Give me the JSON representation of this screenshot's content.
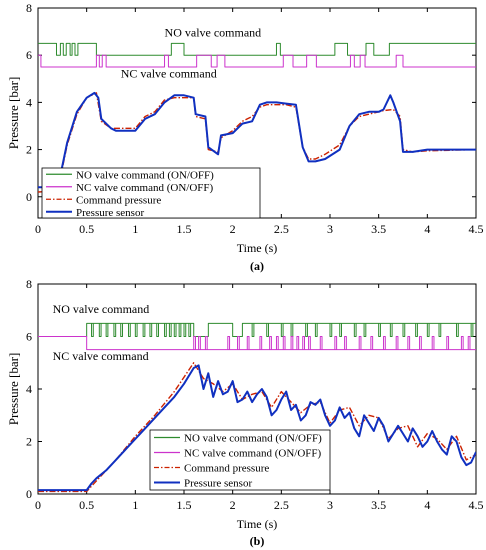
{
  "chart_data": [
    {
      "type": "line",
      "panel_label": "(a)",
      "xlabel": "Time (s)",
      "ylabel": "Pressure [bar]",
      "xlim": [
        0,
        4.5
      ],
      "ylim": [
        -0.9,
        8
      ],
      "xticks": [
        0,
        0.5,
        1,
        1.5,
        2,
        2.5,
        3,
        3.5,
        4,
        4.5
      ],
      "xtick_labels": [
        "0",
        "0.5",
        "1",
        "1.5",
        "2",
        "2.5",
        "3",
        "3.5",
        "4",
        "4.5"
      ],
      "yticks": [
        0,
        2,
        4,
        6,
        8
      ],
      "ytick_labels": [
        "0",
        "2",
        "4",
        "6",
        "8"
      ],
      "grid": false,
      "legend_position": "bottom-left",
      "annotations": [
        {
          "text": "NO valve command",
          "x": 1.3,
          "y": 6.8
        },
        {
          "text": "NC valve command",
          "x": 0.85,
          "y": 5.05
        }
      ],
      "series": [
        {
          "name": "NO valve command (ON/OFF)",
          "color": "#2e8b2e",
          "style": "solid",
          "kind": "digital",
          "low": 6.0,
          "high": 6.5,
          "transitions": [
            [
              0,
              0.19,
              1
            ],
            [
              0.19,
              0.23,
              0
            ],
            [
              0.23,
              0.26,
              1
            ],
            [
              0.26,
              0.29,
              0
            ],
            [
              0.29,
              0.33,
              1
            ],
            [
              0.33,
              0.35,
              0
            ],
            [
              0.35,
              0.38,
              1
            ],
            [
              0.38,
              0.41,
              0
            ],
            [
              0.41,
              0.6,
              1
            ],
            [
              0.6,
              1.37,
              0
            ],
            [
              1.37,
              1.5,
              1
            ],
            [
              1.5,
              2.45,
              0
            ],
            [
              2.45,
              2.49,
              1
            ],
            [
              2.49,
              3.05,
              0
            ],
            [
              3.05,
              3.18,
              1
            ],
            [
              3.18,
              3.37,
              0
            ],
            [
              3.37,
              3.45,
              1
            ],
            [
              3.45,
              3.61,
              0
            ],
            [
              3.61,
              4.5,
              1
            ]
          ]
        },
        {
          "name": "NC valve command (ON/OFF)",
          "color": "#cc33cc",
          "style": "solid",
          "kind": "digital",
          "low": 5.5,
          "high": 6.0,
          "transitions": [
            [
              0,
              0.03,
              1
            ],
            [
              0.03,
              0.6,
              0
            ],
            [
              0.6,
              0.63,
              1
            ],
            [
              0.63,
              0.66,
              0
            ],
            [
              0.66,
              0.7,
              1
            ],
            [
              0.7,
              1.3,
              0
            ],
            [
              1.3,
              1.34,
              1
            ],
            [
              1.34,
              1.63,
              0
            ],
            [
              1.63,
              1.78,
              1
            ],
            [
              1.78,
              1.84,
              0
            ],
            [
              1.84,
              1.92,
              1
            ],
            [
              1.92,
              2.52,
              0
            ],
            [
              2.52,
              2.62,
              1
            ],
            [
              2.62,
              2.76,
              0
            ],
            [
              2.76,
              2.86,
              1
            ],
            [
              2.86,
              3.21,
              0
            ],
            [
              3.21,
              3.25,
              1
            ],
            [
              3.25,
              3.31,
              0
            ],
            [
              3.31,
              3.36,
              1
            ],
            [
              3.36,
              3.68,
              0
            ],
            [
              3.68,
              3.75,
              1
            ],
            [
              3.75,
              4.5,
              0
            ]
          ]
        },
        {
          "name": "Command pressure",
          "color": "#cc2200",
          "style": "dashdot",
          "x": [
            0,
            0.2,
            0.25,
            0.3,
            0.4,
            0.5,
            0.6,
            0.65,
            0.75,
            0.8,
            1.0,
            1.1,
            1.2,
            1.3,
            1.4,
            1.5,
            1.6,
            1.62,
            1.72,
            1.75,
            1.85,
            1.88,
            2.0,
            2.1,
            2.2,
            2.28,
            2.35,
            2.45,
            2.55,
            2.65,
            2.72,
            2.78,
            2.85,
            2.95,
            3.1,
            3.2,
            3.3,
            3.4,
            3.5,
            3.55,
            3.65,
            3.72,
            3.75,
            3.85,
            4.0,
            4.5
          ],
          "y": [
            0.2,
            0.25,
            1.2,
            2.2,
            3.5,
            4.2,
            4.4,
            3.2,
            2.9,
            2.9,
            2.9,
            3.4,
            3.6,
            4.1,
            4.2,
            4.2,
            4.2,
            3.4,
            3.3,
            2.0,
            1.9,
            2.5,
            2.8,
            3.2,
            3.4,
            3.8,
            3.9,
            3.9,
            3.9,
            3.8,
            2.1,
            1.6,
            1.6,
            1.8,
            2.2,
            3.0,
            3.4,
            3.5,
            3.6,
            3.65,
            3.7,
            3.4,
            2.0,
            1.9,
            1.95,
            2.0
          ]
        },
        {
          "name": "Pressure sensor",
          "color": "#1030c0",
          "style": "solid",
          "x": [
            0,
            0.2,
            0.25,
            0.3,
            0.4,
            0.5,
            0.58,
            0.62,
            0.65,
            0.75,
            0.8,
            1.0,
            1.1,
            1.2,
            1.3,
            1.4,
            1.5,
            1.6,
            1.62,
            1.72,
            1.75,
            1.85,
            1.88,
            2.0,
            2.1,
            2.2,
            2.28,
            2.35,
            2.45,
            2.55,
            2.65,
            2.72,
            2.78,
            2.85,
            2.95,
            3.1,
            3.2,
            3.3,
            3.4,
            3.5,
            3.55,
            3.62,
            3.65,
            3.72,
            3.75,
            3.85,
            4.0,
            4.5
          ],
          "y": [
            0.4,
            0.4,
            1.3,
            2.3,
            3.6,
            4.2,
            4.4,
            4.2,
            3.3,
            2.9,
            2.8,
            2.8,
            3.3,
            3.5,
            4.0,
            4.3,
            4.3,
            4.2,
            3.5,
            3.4,
            2.1,
            1.8,
            2.6,
            2.7,
            3.1,
            3.2,
            3.9,
            4.0,
            4.0,
            3.95,
            3.9,
            2.1,
            1.5,
            1.5,
            1.6,
            2.0,
            3.0,
            3.5,
            3.6,
            3.6,
            3.7,
            4.3,
            4.0,
            3.2,
            1.9,
            1.9,
            2.0,
            2.0
          ]
        }
      ]
    },
    {
      "type": "line",
      "panel_label": "(b)",
      "xlabel": "Time (s)",
      "ylabel": "Pressure [bar]",
      "xlim": [
        0,
        4.5
      ],
      "ylim": [
        0,
        8
      ],
      "xticks": [
        0,
        0.5,
        1,
        1.5,
        2,
        2.5,
        3,
        3.5,
        4,
        4.5
      ],
      "xtick_labels": [
        "0",
        "0.5",
        "1",
        "1.5",
        "2",
        "2.5",
        "3",
        "3.5",
        "4",
        "4.5"
      ],
      "yticks": [
        0,
        2,
        4,
        6,
        8
      ],
      "ytick_labels": [
        "0",
        "2",
        "4",
        "6",
        "8"
      ],
      "grid": false,
      "legend_position": "bottom-center",
      "annotations": [
        {
          "text": "NO valve command",
          "x": 0.15,
          "y": 6.9
        },
        {
          "text": "NC valve command",
          "x": 0.15,
          "y": 5.1
        }
      ],
      "series": [
        {
          "name": "NO valve command (ON/OFF)",
          "color": "#2e8b2e",
          "style": "solid",
          "kind": "digital",
          "low": 6.0,
          "high": 6.5,
          "transitions": [
            [
              0,
              0.5,
              0
            ],
            [
              0.5,
              1.6,
              1
            ],
            [
              1.6,
              1.75,
              0
            ],
            [
              1.75,
              2.0,
              1
            ],
            [
              2.0,
              2.1,
              0
            ],
            [
              2.1,
              4.5,
              1
            ]
          ],
          "pulses": [
            0.55,
            0.63,
            0.7,
            0.78,
            0.85,
            0.93,
            1.0,
            1.08,
            1.15,
            1.22,
            1.3,
            1.35,
            1.4,
            1.45,
            1.5,
            1.55,
            2.2,
            2.35,
            2.5,
            2.6,
            2.75,
            2.85,
            3.0,
            3.1,
            3.25,
            3.35,
            3.5,
            3.62,
            3.75,
            3.88,
            4.0,
            4.12,
            4.3,
            4.45
          ]
        },
        {
          "name": "NC valve command (ON/OFF)",
          "color": "#cc33cc",
          "style": "solid",
          "kind": "digital",
          "low": 5.5,
          "high": 6.0,
          "transitions": [
            [
              0,
              0.5,
              1
            ],
            [
              0.5,
              4.5,
              0
            ]
          ],
          "pulses": [
            1.6,
            1.65,
            1.72,
            1.95,
            2.05,
            2.15,
            2.28,
            2.38,
            2.45,
            2.52,
            2.6,
            2.66,
            2.72,
            2.78,
            2.9,
            3.05,
            3.15,
            3.3,
            3.42,
            3.55,
            3.68,
            3.8,
            3.92,
            4.05,
            4.2,
            4.35,
            4.42
          ]
        },
        {
          "name": "Command pressure",
          "color": "#cc2200",
          "style": "dashdot",
          "x": [
            0,
            0.5,
            0.6,
            0.8,
            1.0,
            1.2,
            1.4,
            1.6,
            1.7,
            1.8,
            1.9,
            2.0,
            2.1,
            2.2,
            2.3,
            2.4,
            2.5,
            2.6,
            2.7,
            2.8,
            2.9,
            3.0,
            3.1,
            3.2,
            3.3,
            3.4,
            3.5,
            3.6,
            3.7,
            3.8,
            3.9,
            4.0,
            4.1,
            4.2,
            4.3,
            4.4,
            4.5
          ],
          "y": [
            0.1,
            0.1,
            0.5,
            1.3,
            2.2,
            3.0,
            3.9,
            5.0,
            4.4,
            4.2,
            3.9,
            4.2,
            3.6,
            3.8,
            3.9,
            3.3,
            3.9,
            3.5,
            3.1,
            3.4,
            3.5,
            2.7,
            3.2,
            3.3,
            2.6,
            3.0,
            2.9,
            2.1,
            2.5,
            2.6,
            1.8,
            2.3,
            2.1,
            1.7,
            2.2,
            1.3,
            1.5
          ]
        },
        {
          "name": "Pressure sensor",
          "color": "#1030c0",
          "style": "solid",
          "x": [
            0,
            0.5,
            0.55,
            0.6,
            0.7,
            0.8,
            0.9,
            1.0,
            1.1,
            1.2,
            1.3,
            1.4,
            1.5,
            1.6,
            1.65,
            1.7,
            1.75,
            1.8,
            1.85,
            1.9,
            1.95,
            2.0,
            2.05,
            2.1,
            2.15,
            2.2,
            2.25,
            2.3,
            2.35,
            2.4,
            2.45,
            2.5,
            2.55,
            2.6,
            2.65,
            2.7,
            2.75,
            2.8,
            2.85,
            2.9,
            2.95,
            3.0,
            3.05,
            3.1,
            3.15,
            3.2,
            3.25,
            3.3,
            3.35,
            3.4,
            3.45,
            3.5,
            3.55,
            3.6,
            3.65,
            3.7,
            3.75,
            3.8,
            3.85,
            3.9,
            3.95,
            4.0,
            4.05,
            4.1,
            4.15,
            4.2,
            4.25,
            4.3,
            4.35,
            4.4,
            4.45,
            4.5
          ],
          "y": [
            0.15,
            0.15,
            0.4,
            0.6,
            0.9,
            1.3,
            1.7,
            2.1,
            2.5,
            2.9,
            3.3,
            3.7,
            4.2,
            4.8,
            4.9,
            4.0,
            4.6,
            3.7,
            4.3,
            3.8,
            3.9,
            4.3,
            3.5,
            3.6,
            3.9,
            3.5,
            3.8,
            4.0,
            3.7,
            3.0,
            3.2,
            3.6,
            3.9,
            3.2,
            3.4,
            2.8,
            3.0,
            3.5,
            3.4,
            3.6,
            3.0,
            2.6,
            2.8,
            3.3,
            2.9,
            3.1,
            2.5,
            2.2,
            3.0,
            2.7,
            2.4,
            2.9,
            2.6,
            2.0,
            2.3,
            2.6,
            2.3,
            2.0,
            2.5,
            2.2,
            1.8,
            2.0,
            2.4,
            2.0,
            1.7,
            1.5,
            2.2,
            2.0,
            1.4,
            1.1,
            1.2,
            1.6
          ]
        }
      ]
    }
  ]
}
